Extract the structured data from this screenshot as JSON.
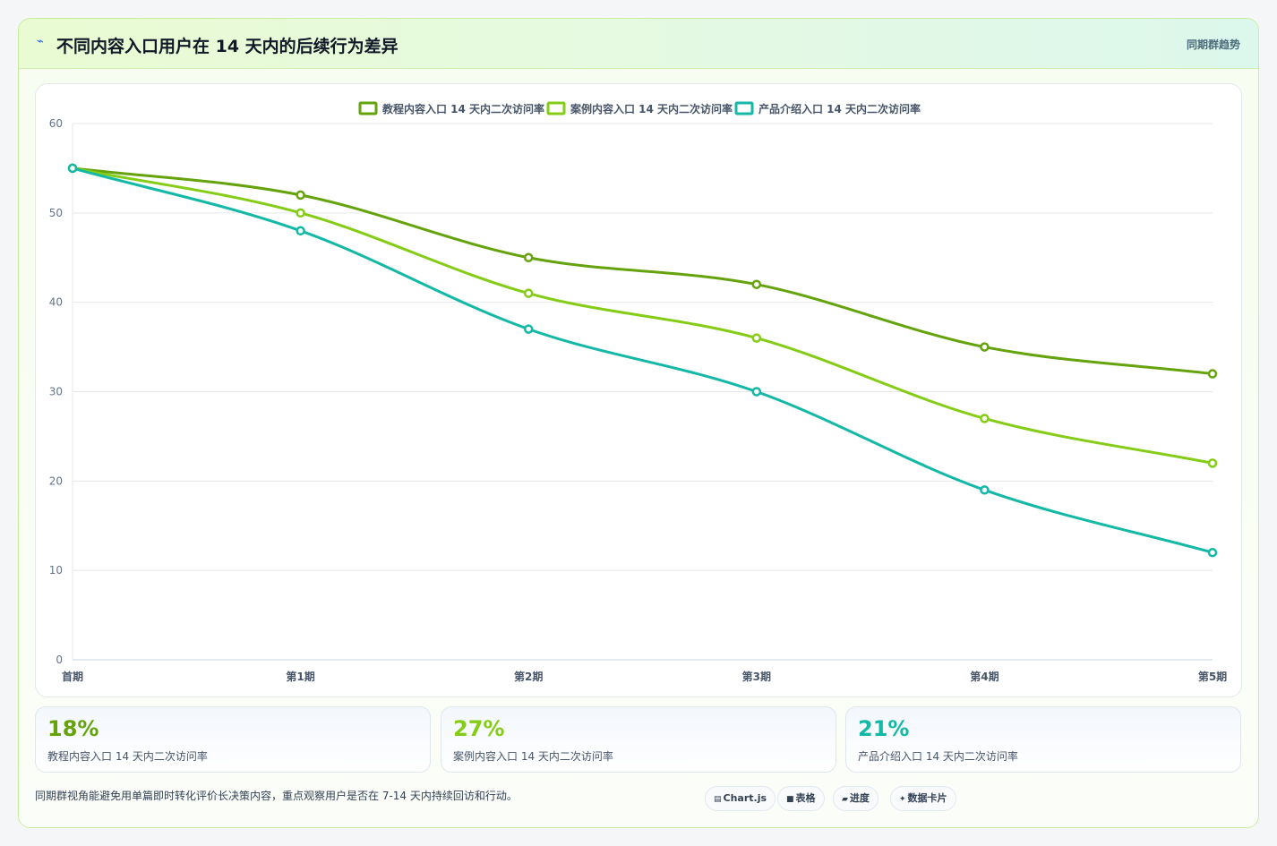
{
  "header": {
    "title": "不同内容入口用户在 14 天内的后续行为差异",
    "tag": "同期群趋势"
  },
  "chart_data": {
    "type": "line",
    "categories": [
      "首期",
      "第1期",
      "第2期",
      "第3期",
      "第4期",
      "第5期"
    ],
    "series": [
      {
        "name": "教程内容入口 14 天内二次访问率",
        "color": "#65a30d",
        "values": [
          55,
          52,
          45,
          42,
          35,
          32
        ]
      },
      {
        "name": "案例内容入口 14 天内二次访问率",
        "color": "#84cc16",
        "values": [
          55,
          50,
          41,
          36,
          27,
          22
        ]
      },
      {
        "name": "产品介绍入口 14 天内二次访问率",
        "color": "#14b8a6",
        "values": [
          55,
          48,
          37,
          30,
          19,
          12
        ]
      }
    ],
    "ylim": [
      0,
      60
    ],
    "yticks": [
      0,
      10,
      20,
      30,
      40,
      50,
      60
    ],
    "grid": true,
    "legend": "top-center"
  },
  "stats": [
    {
      "value": "18%",
      "label": "教程内容入口 14 天内二次访问率",
      "color": "#65a30d"
    },
    {
      "value": "27%",
      "label": "案例内容入口 14 天内二次访问率",
      "color": "#84cc16"
    },
    {
      "value": "21%",
      "label": "产品介绍入口 14 天内二次访问率",
      "color": "#14b8a6"
    }
  ],
  "footnote": "同期群视角能避免用单篇即时转化评价长决策内容，重点观察用户是否在 7-14 天内持续回访和行动。",
  "pills": [
    {
      "icon": "▤",
      "label": "Chart.js"
    },
    {
      "icon": "■",
      "label": "表格"
    },
    {
      "icon": "▰",
      "label": "进度"
    },
    {
      "icon": "✦",
      "label": "数据卡片"
    }
  ]
}
